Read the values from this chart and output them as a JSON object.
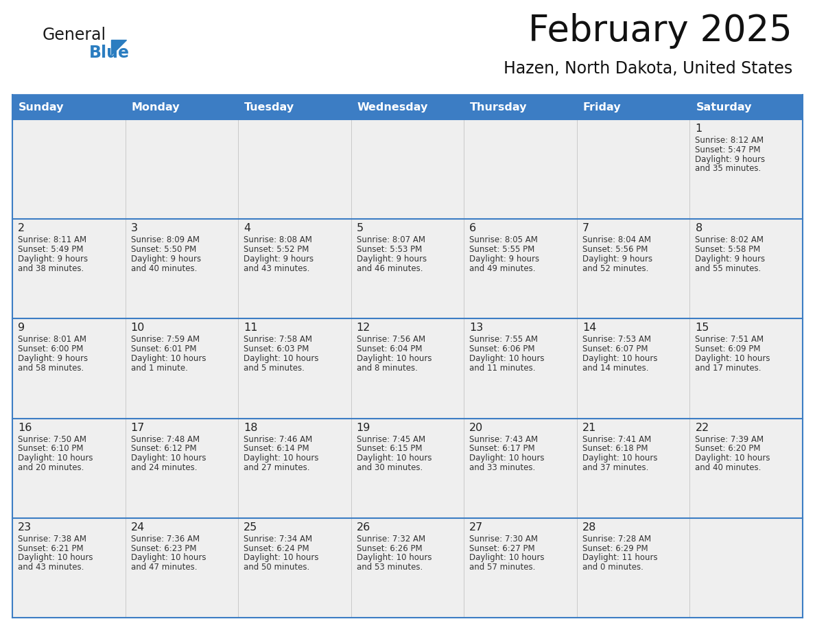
{
  "title": "February 2025",
  "subtitle": "Hazen, North Dakota, United States",
  "days_of_week": [
    "Sunday",
    "Monday",
    "Tuesday",
    "Wednesday",
    "Thursday",
    "Friday",
    "Saturday"
  ],
  "header_bg": "#3C7DC4",
  "header_text": "#FFFFFF",
  "cell_bg": "#EFEFEF",
  "cell_bg_white": "#FFFFFF",
  "row_border_color": "#3C7DC4",
  "text_color": "#333333",
  "day_num_color": "#222222",
  "calendar_data": [
    [
      null,
      null,
      null,
      null,
      null,
      null,
      {
        "day": 1,
        "sunrise": "8:12 AM",
        "sunset": "5:47 PM",
        "daylight_line1": "9 hours",
        "daylight_line2": "and 35 minutes."
      }
    ],
    [
      {
        "day": 2,
        "sunrise": "8:11 AM",
        "sunset": "5:49 PM",
        "daylight_line1": "9 hours",
        "daylight_line2": "and 38 minutes."
      },
      {
        "day": 3,
        "sunrise": "8:09 AM",
        "sunset": "5:50 PM",
        "daylight_line1": "9 hours",
        "daylight_line2": "and 40 minutes."
      },
      {
        "day": 4,
        "sunrise": "8:08 AM",
        "sunset": "5:52 PM",
        "daylight_line1": "9 hours",
        "daylight_line2": "and 43 minutes."
      },
      {
        "day": 5,
        "sunrise": "8:07 AM",
        "sunset": "5:53 PM",
        "daylight_line1": "9 hours",
        "daylight_line2": "and 46 minutes."
      },
      {
        "day": 6,
        "sunrise": "8:05 AM",
        "sunset": "5:55 PM",
        "daylight_line1": "9 hours",
        "daylight_line2": "and 49 minutes."
      },
      {
        "day": 7,
        "sunrise": "8:04 AM",
        "sunset": "5:56 PM",
        "daylight_line1": "9 hours",
        "daylight_line2": "and 52 minutes."
      },
      {
        "day": 8,
        "sunrise": "8:02 AM",
        "sunset": "5:58 PM",
        "daylight_line1": "9 hours",
        "daylight_line2": "and 55 minutes."
      }
    ],
    [
      {
        "day": 9,
        "sunrise": "8:01 AM",
        "sunset": "6:00 PM",
        "daylight_line1": "9 hours",
        "daylight_line2": "and 58 minutes."
      },
      {
        "day": 10,
        "sunrise": "7:59 AM",
        "sunset": "6:01 PM",
        "daylight_line1": "10 hours",
        "daylight_line2": "and 1 minute."
      },
      {
        "day": 11,
        "sunrise": "7:58 AM",
        "sunset": "6:03 PM",
        "daylight_line1": "10 hours",
        "daylight_line2": "and 5 minutes."
      },
      {
        "day": 12,
        "sunrise": "7:56 AM",
        "sunset": "6:04 PM",
        "daylight_line1": "10 hours",
        "daylight_line2": "and 8 minutes."
      },
      {
        "day": 13,
        "sunrise": "7:55 AM",
        "sunset": "6:06 PM",
        "daylight_line1": "10 hours",
        "daylight_line2": "and 11 minutes."
      },
      {
        "day": 14,
        "sunrise": "7:53 AM",
        "sunset": "6:07 PM",
        "daylight_line1": "10 hours",
        "daylight_line2": "and 14 minutes."
      },
      {
        "day": 15,
        "sunrise": "7:51 AM",
        "sunset": "6:09 PM",
        "daylight_line1": "10 hours",
        "daylight_line2": "and 17 minutes."
      }
    ],
    [
      {
        "day": 16,
        "sunrise": "7:50 AM",
        "sunset": "6:10 PM",
        "daylight_line1": "10 hours",
        "daylight_line2": "and 20 minutes."
      },
      {
        "day": 17,
        "sunrise": "7:48 AM",
        "sunset": "6:12 PM",
        "daylight_line1": "10 hours",
        "daylight_line2": "and 24 minutes."
      },
      {
        "day": 18,
        "sunrise": "7:46 AM",
        "sunset": "6:14 PM",
        "daylight_line1": "10 hours",
        "daylight_line2": "and 27 minutes."
      },
      {
        "day": 19,
        "sunrise": "7:45 AM",
        "sunset": "6:15 PM",
        "daylight_line1": "10 hours",
        "daylight_line2": "and 30 minutes."
      },
      {
        "day": 20,
        "sunrise": "7:43 AM",
        "sunset": "6:17 PM",
        "daylight_line1": "10 hours",
        "daylight_line2": "and 33 minutes."
      },
      {
        "day": 21,
        "sunrise": "7:41 AM",
        "sunset": "6:18 PM",
        "daylight_line1": "10 hours",
        "daylight_line2": "and 37 minutes."
      },
      {
        "day": 22,
        "sunrise": "7:39 AM",
        "sunset": "6:20 PM",
        "daylight_line1": "10 hours",
        "daylight_line2": "and 40 minutes."
      }
    ],
    [
      {
        "day": 23,
        "sunrise": "7:38 AM",
        "sunset": "6:21 PM",
        "daylight_line1": "10 hours",
        "daylight_line2": "and 43 minutes."
      },
      {
        "day": 24,
        "sunrise": "7:36 AM",
        "sunset": "6:23 PM",
        "daylight_line1": "10 hours",
        "daylight_line2": "and 47 minutes."
      },
      {
        "day": 25,
        "sunrise": "7:34 AM",
        "sunset": "6:24 PM",
        "daylight_line1": "10 hours",
        "daylight_line2": "and 50 minutes."
      },
      {
        "day": 26,
        "sunrise": "7:32 AM",
        "sunset": "6:26 PM",
        "daylight_line1": "10 hours",
        "daylight_line2": "and 53 minutes."
      },
      {
        "day": 27,
        "sunrise": "7:30 AM",
        "sunset": "6:27 PM",
        "daylight_line1": "10 hours",
        "daylight_line2": "and 57 minutes."
      },
      {
        "day": 28,
        "sunrise": "7:28 AM",
        "sunset": "6:29 PM",
        "daylight_line1": "11 hours",
        "daylight_line2": "and 0 minutes."
      },
      null
    ]
  ],
  "logo_text_general": "General",
  "logo_text_blue": "Blue",
  "logo_color_general": "#1a1a1a",
  "logo_color_blue": "#2B7DC0",
  "logo_triangle_color": "#2B7DC0"
}
